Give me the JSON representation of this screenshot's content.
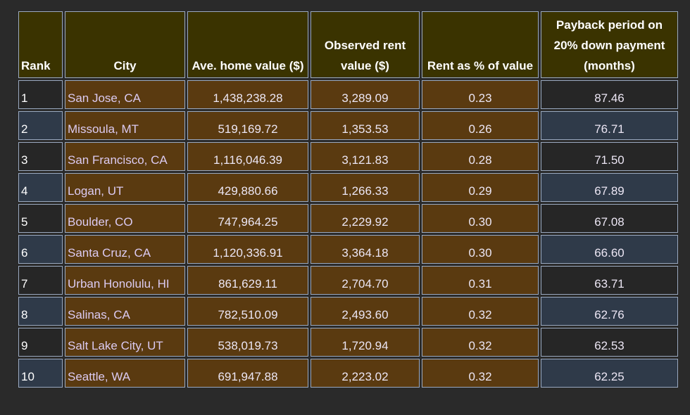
{
  "table": {
    "headers": [
      "Rank",
      "City",
      "Ave. home value ($)",
      "Observed rent value ($)",
      "Rent as % of value",
      "Payback period on 20% down payment (months)"
    ],
    "rows": [
      [
        "1",
        "San Jose, CA",
        "1,438,238.28",
        "3,289.09",
        "0.23",
        "87.46"
      ],
      [
        "2",
        "Missoula, MT",
        "519,169.72",
        "1,353.53",
        "0.26",
        "76.71"
      ],
      [
        "3",
        "San Francisco, CA",
        "1,116,046.39",
        "3,121.83",
        "0.28",
        "71.50"
      ],
      [
        "4",
        "Logan, UT",
        "429,880.66",
        "1,266.33",
        "0.29",
        "67.89"
      ],
      [
        "5",
        "Boulder, CO",
        "747,964.25",
        "2,229.92",
        "0.30",
        "67.08"
      ],
      [
        "6",
        "Santa Cruz, CA",
        "1,120,336.91",
        "3,364.18",
        "0.30",
        "66.60"
      ],
      [
        "7",
        "Urban Honolulu, HI",
        "861,629.11",
        "2,704.70",
        "0.31",
        "63.71"
      ],
      [
        "8",
        "Salinas, CA",
        "782,510.09",
        "2,493.60",
        "0.32",
        "62.76"
      ],
      [
        "9",
        "Salt Lake City, UT",
        "538,019.73",
        "1,720.94",
        "0.32",
        "62.53"
      ],
      [
        "10",
        "Seattle, WA",
        "691,947.88",
        "2,223.02",
        "0.32",
        "62.25"
      ]
    ]
  }
}
